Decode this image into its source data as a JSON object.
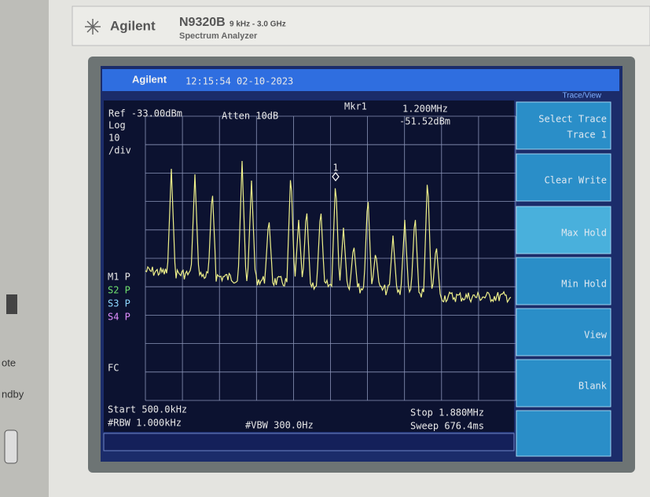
{
  "bezel": {
    "brand": "Agilent",
    "model": "N9320B",
    "range": "9 kHz - 3.0 GHz",
    "product": "Spectrum Analyzer",
    "side_labels": [
      "ote",
      "ndby"
    ]
  },
  "screen": {
    "header": {
      "brand": "Agilent",
      "datetime": "12:15:54 02-10-2023",
      "menu_title": "Trace/View"
    },
    "settings": {
      "ref": "Ref -33.00dBm",
      "scale_type": "Log",
      "scale_value": "10",
      "scale_unit": "/div",
      "atten": "Atten 10dB"
    },
    "marker": {
      "label": "Mkr1",
      "frequency": "1.200MHz",
      "amplitude": "-51.52dBm",
      "id": "1"
    },
    "trace_status": [
      "M1 P",
      "S2 P",
      "S3 P",
      "S4 P"
    ],
    "fc": "FC",
    "footer": {
      "start": "Start 500.0kHz",
      "rbw": "#RBW 1.000kHz",
      "vbw": "#VBW 300.0Hz",
      "stop": "Stop 1.880MHz",
      "sweep": "Sweep 676.4ms"
    },
    "softkeys": [
      {
        "label": "Select Trace",
        "value": "Trace 1"
      },
      {
        "label": "Clear Write"
      },
      {
        "label": "Max Hold"
      },
      {
        "label": "Min Hold"
      },
      {
        "label": "View"
      },
      {
        "label": "Blank"
      }
    ]
  }
}
